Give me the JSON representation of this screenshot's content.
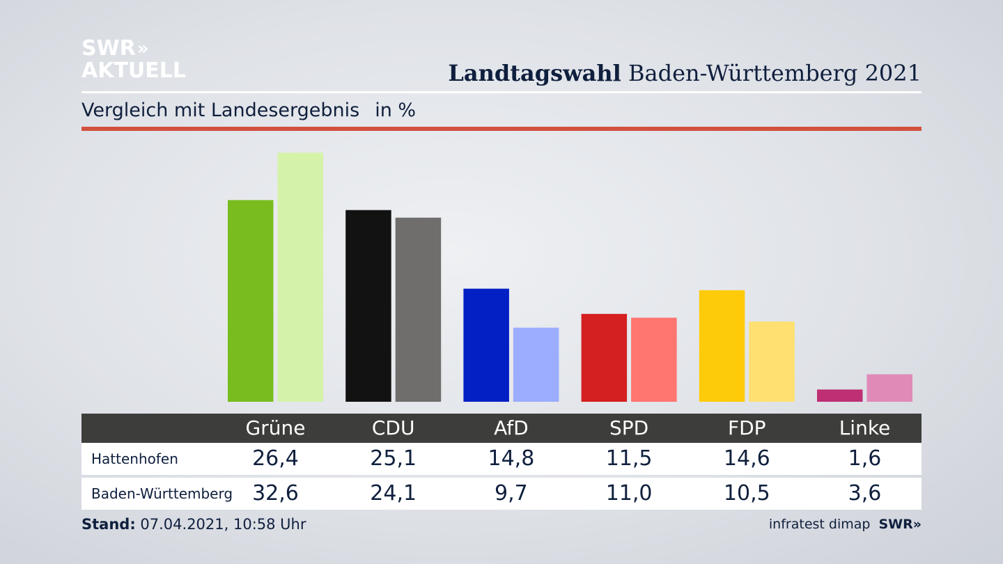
{
  "brand": {
    "logo_line1": "SWR",
    "logo_chevrons": "»",
    "logo_line2": "AKTUELL"
  },
  "header": {
    "title_bold": "Landtagswahl",
    "title_rest": " Baden-Württemberg 2021",
    "subtitle": "Vergleich mit Landesergebnis",
    "unit": "in %"
  },
  "chart_data": {
    "type": "bar",
    "categories": [
      "Grüne",
      "CDU",
      "AfD",
      "SPD",
      "FDP",
      "Linke"
    ],
    "series": [
      {
        "name": "Hattenhofen",
        "values": [
          26.4,
          25.1,
          14.8,
          11.5,
          14.6,
          1.6
        ],
        "display": [
          "26,4",
          "25,1",
          "14,8",
          "11,5",
          "14,6",
          "1,6"
        ]
      },
      {
        "name": "Baden-Württemberg",
        "values": [
          32.6,
          24.1,
          9.7,
          11.0,
          10.5,
          3.6
        ],
        "display": [
          "32,6",
          "24,1",
          "9,7",
          "11,0",
          "10,5",
          "3,6"
        ]
      }
    ],
    "colors": {
      "Hattenhofen": [
        "#78bd1d",
        "#121212",
        "#0220c4",
        "#d42020",
        "#fecb0b",
        "#be2f74"
      ],
      "Baden-Württemberg": [
        "#d4f3a8",
        "#6f6e6c",
        "#9cacff",
        "#ff7570",
        "#ffe070",
        "#e08ab8"
      ]
    },
    "ylim": [
      0,
      33
    ]
  },
  "footer": {
    "stand_label": "Stand:",
    "stand_value": " 07.04.2021, 10:58 Uhr",
    "source": "infratest dimap",
    "source_brand": "SWR»"
  }
}
